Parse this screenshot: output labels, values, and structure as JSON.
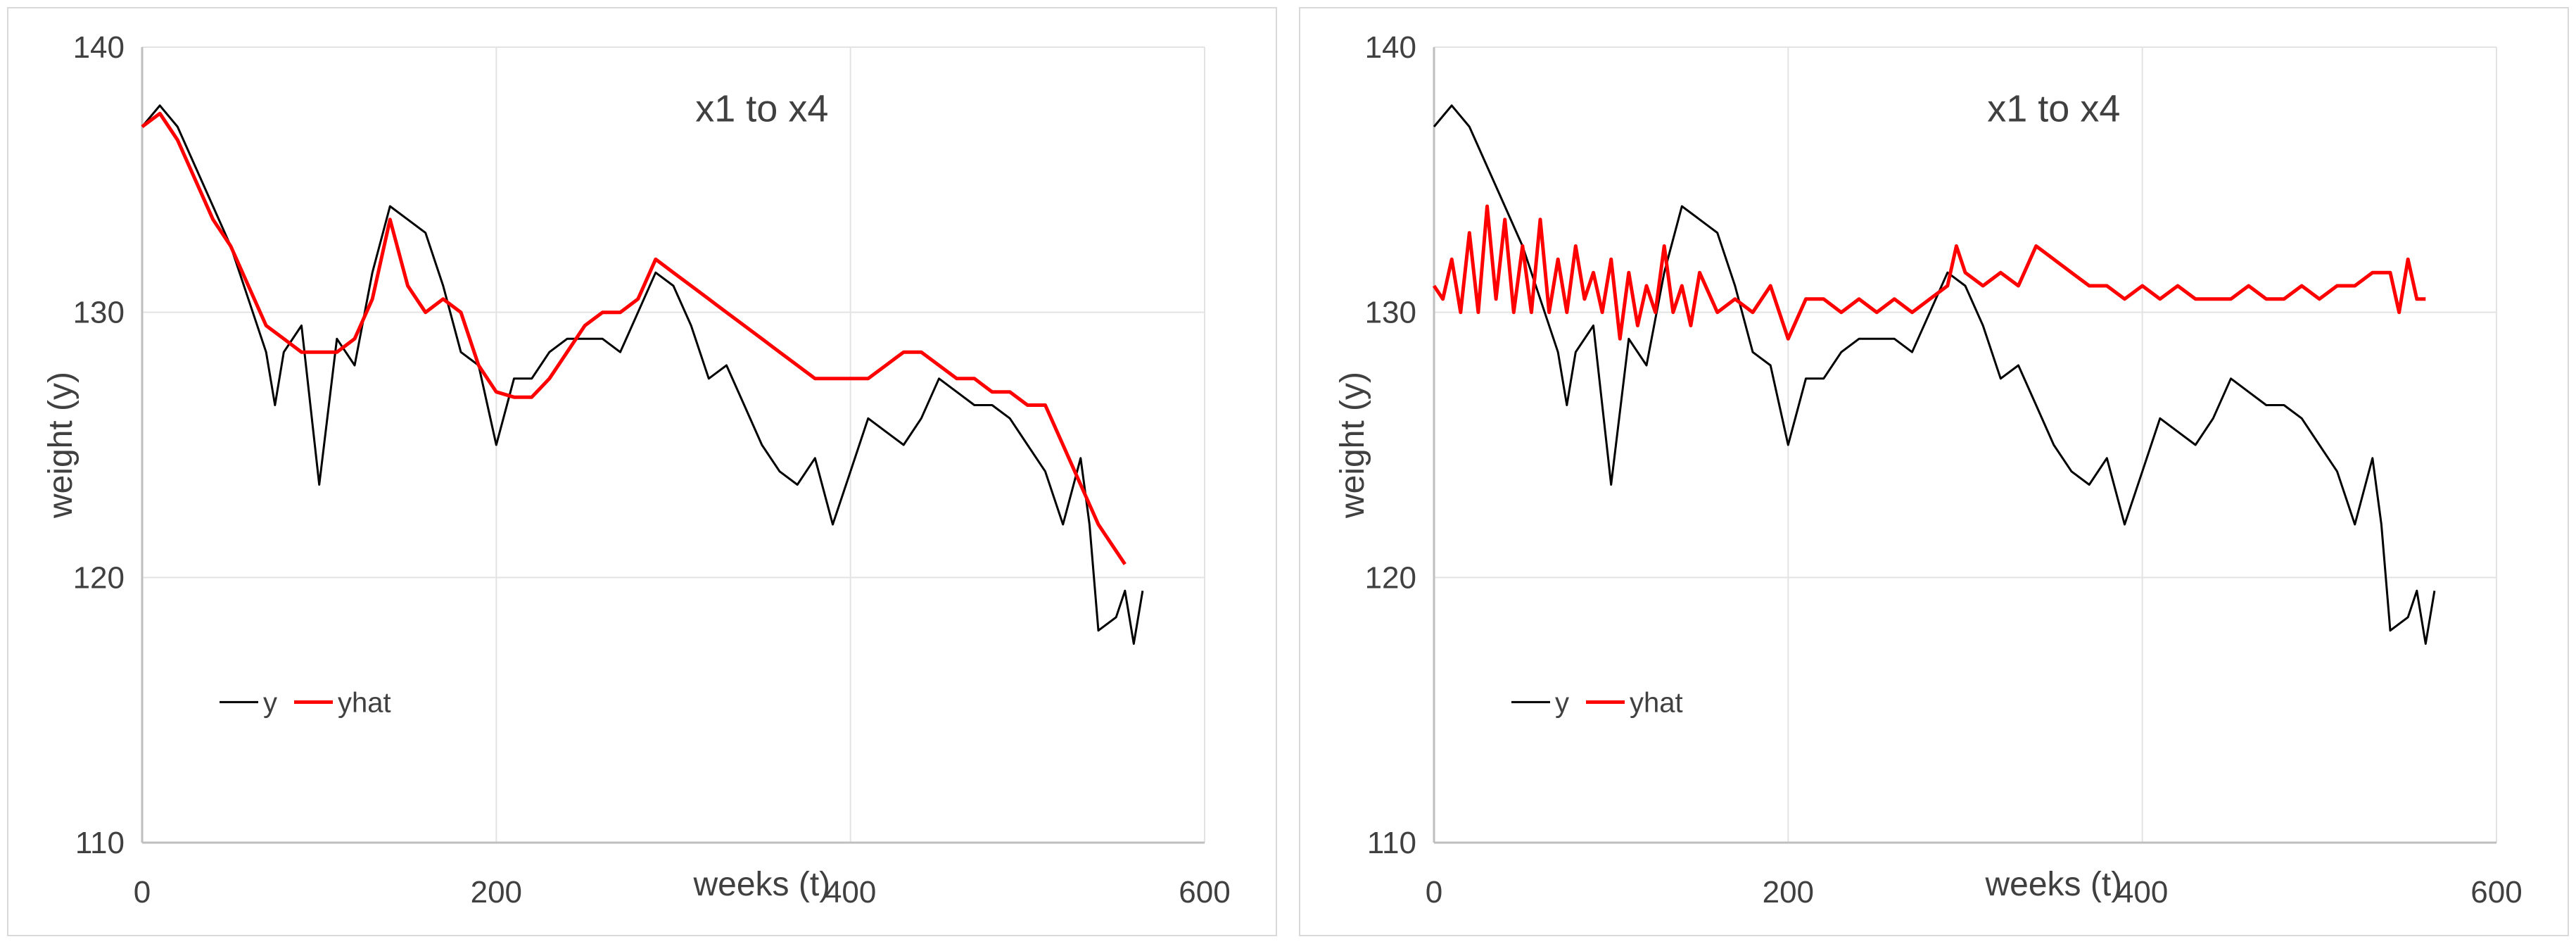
{
  "chart_data": [
    {
      "type": "line",
      "title": "x1 to x4",
      "xlabel": "weeks (t)",
      "ylabel": "weight (y)",
      "xlim": [
        0,
        600
      ],
      "ylim": [
        110,
        140
      ],
      "xticks": [
        0,
        200,
        400,
        600
      ],
      "yticks": [
        110,
        120,
        130,
        140
      ],
      "grid": true,
      "legend": "bottom-left",
      "series": [
        {
          "name": "y",
          "color": "#000000",
          "x": [
            0,
            10,
            20,
            30,
            40,
            50,
            60,
            70,
            75,
            80,
            90,
            100,
            110,
            120,
            130,
            140,
            150,
            160,
            170,
            180,
            190,
            200,
            210,
            220,
            230,
            240,
            250,
            260,
            270,
            280,
            290,
            300,
            310,
            320,
            330,
            340,
            350,
            360,
            370,
            380,
            390,
            400,
            410,
            420,
            430,
            440,
            450,
            460,
            470,
            480,
            490,
            500,
            510,
            520,
            530,
            535,
            540,
            550,
            555,
            560,
            565
          ],
          "y": [
            137.0,
            137.8,
            137.0,
            135.5,
            134.0,
            132.5,
            130.5,
            128.5,
            126.5,
            128.5,
            129.5,
            123.5,
            129.0,
            128.0,
            131.5,
            134.0,
            133.5,
            133.0,
            131.0,
            128.5,
            128.0,
            125.0,
            127.5,
            127.5,
            128.5,
            129.0,
            129.0,
            129.0,
            128.5,
            130.0,
            131.5,
            131.0,
            129.5,
            127.5,
            128.0,
            126.5,
            125.0,
            124.0,
            123.5,
            124.5,
            122.0,
            124.0,
            126.0,
            125.5,
            125.0,
            126.0,
            127.5,
            127.0,
            126.5,
            126.5,
            126.0,
            125.0,
            124.0,
            122.0,
            124.5,
            122.0,
            118.0,
            118.5,
            119.5,
            117.5,
            119.5
          ]
        },
        {
          "name": "yhat",
          "color": "#ff0000",
          "x": [
            0,
            10,
            20,
            30,
            40,
            50,
            60,
            70,
            80,
            90,
            100,
            110,
            120,
            130,
            140,
            150,
            160,
            170,
            180,
            190,
            200,
            210,
            220,
            230,
            240,
            250,
            260,
            270,
            280,
            290,
            300,
            310,
            320,
            330,
            340,
            350,
            360,
            370,
            380,
            390,
            400,
            410,
            420,
            430,
            440,
            450,
            460,
            470,
            480,
            490,
            500,
            510,
            520,
            530,
            540,
            550,
            555
          ],
          "y": [
            137.0,
            137.5,
            136.5,
            135.0,
            133.5,
            132.5,
            131.0,
            129.5,
            129.0,
            128.5,
            128.5,
            128.5,
            129.0,
            130.5,
            133.5,
            131.0,
            130.0,
            130.5,
            130.0,
            128.0,
            127.0,
            126.8,
            126.8,
            127.5,
            128.5,
            129.5,
            130.0,
            130.0,
            130.5,
            132.0,
            131.5,
            131.0,
            130.5,
            130.0,
            129.5,
            129.0,
            128.5,
            128.0,
            127.5,
            127.5,
            127.5,
            127.5,
            128.0,
            128.5,
            128.5,
            128.0,
            127.5,
            127.5,
            127.0,
            127.0,
            126.5,
            126.5,
            125.0,
            123.5,
            122.0,
            121.0,
            120.5
          ]
        }
      ]
    },
    {
      "type": "line",
      "title": "x1 to x4",
      "xlabel": "weeks (t)",
      "ylabel": "weight (y)",
      "xlim": [
        0,
        600
      ],
      "ylim": [
        110,
        140
      ],
      "xticks": [
        0,
        200,
        400,
        600
      ],
      "yticks": [
        110,
        120,
        130,
        140
      ],
      "grid": true,
      "legend": "bottom-left",
      "series": [
        {
          "name": "y",
          "color": "#000000",
          "x": [
            0,
            10,
            20,
            30,
            40,
            50,
            60,
            70,
            75,
            80,
            90,
            100,
            110,
            120,
            130,
            140,
            150,
            160,
            170,
            180,
            190,
            200,
            210,
            220,
            230,
            240,
            250,
            260,
            270,
            280,
            290,
            300,
            310,
            320,
            330,
            340,
            350,
            360,
            370,
            380,
            390,
            400,
            410,
            420,
            430,
            440,
            450,
            460,
            470,
            480,
            490,
            500,
            510,
            520,
            530,
            535,
            540,
            550,
            555,
            560,
            565
          ],
          "y": [
            137.0,
            137.8,
            137.0,
            135.5,
            134.0,
            132.5,
            130.5,
            128.5,
            126.5,
            128.5,
            129.5,
            123.5,
            129.0,
            128.0,
            131.5,
            134.0,
            133.5,
            133.0,
            131.0,
            128.5,
            128.0,
            125.0,
            127.5,
            127.5,
            128.5,
            129.0,
            129.0,
            129.0,
            128.5,
            130.0,
            131.5,
            131.0,
            129.5,
            127.5,
            128.0,
            126.5,
            125.0,
            124.0,
            123.5,
            124.5,
            122.0,
            124.0,
            126.0,
            125.5,
            125.0,
            126.0,
            127.5,
            127.0,
            126.5,
            126.5,
            126.0,
            125.0,
            124.0,
            122.0,
            124.5,
            122.0,
            118.0,
            118.5,
            119.5,
            117.5,
            119.5
          ]
        },
        {
          "name": "yhat",
          "color": "#ff0000",
          "x": [
            0,
            5,
            10,
            15,
            20,
            25,
            30,
            35,
            40,
            45,
            50,
            55,
            60,
            65,
            70,
            75,
            80,
            85,
            90,
            95,
            100,
            105,
            110,
            115,
            120,
            125,
            130,
            135,
            140,
            145,
            150,
            160,
            170,
            180,
            190,
            200,
            210,
            220,
            230,
            240,
            250,
            260,
            270,
            280,
            290,
            295,
            300,
            310,
            320,
            330,
            340,
            350,
            360,
            370,
            380,
            390,
            400,
            410,
            420,
            430,
            440,
            450,
            460,
            470,
            480,
            490,
            500,
            510,
            520,
            530,
            540,
            545,
            550,
            555,
            560
          ],
          "y": [
            131.0,
            130.5,
            132.0,
            130.0,
            133.0,
            130.0,
            134.0,
            130.5,
            133.5,
            130.0,
            132.5,
            130.0,
            133.5,
            130.0,
            132.0,
            130.0,
            132.5,
            130.5,
            131.5,
            130.0,
            132.0,
            129.0,
            131.5,
            129.5,
            131.0,
            130.0,
            132.5,
            130.0,
            131.0,
            129.5,
            131.5,
            130.0,
            130.5,
            130.0,
            131.0,
            129.0,
            130.5,
            130.5,
            130.0,
            130.5,
            130.0,
            130.5,
            130.0,
            130.5,
            131.0,
            132.5,
            131.5,
            131.0,
            131.5,
            131.0,
            132.5,
            132.0,
            131.5,
            131.0,
            131.0,
            130.5,
            131.0,
            130.5,
            131.0,
            130.5,
            130.5,
            130.5,
            131.0,
            130.5,
            130.5,
            131.0,
            130.5,
            131.0,
            131.0,
            131.5,
            131.5,
            130.0,
            132.0,
            130.5,
            130.5
          ]
        }
      ]
    }
  ]
}
